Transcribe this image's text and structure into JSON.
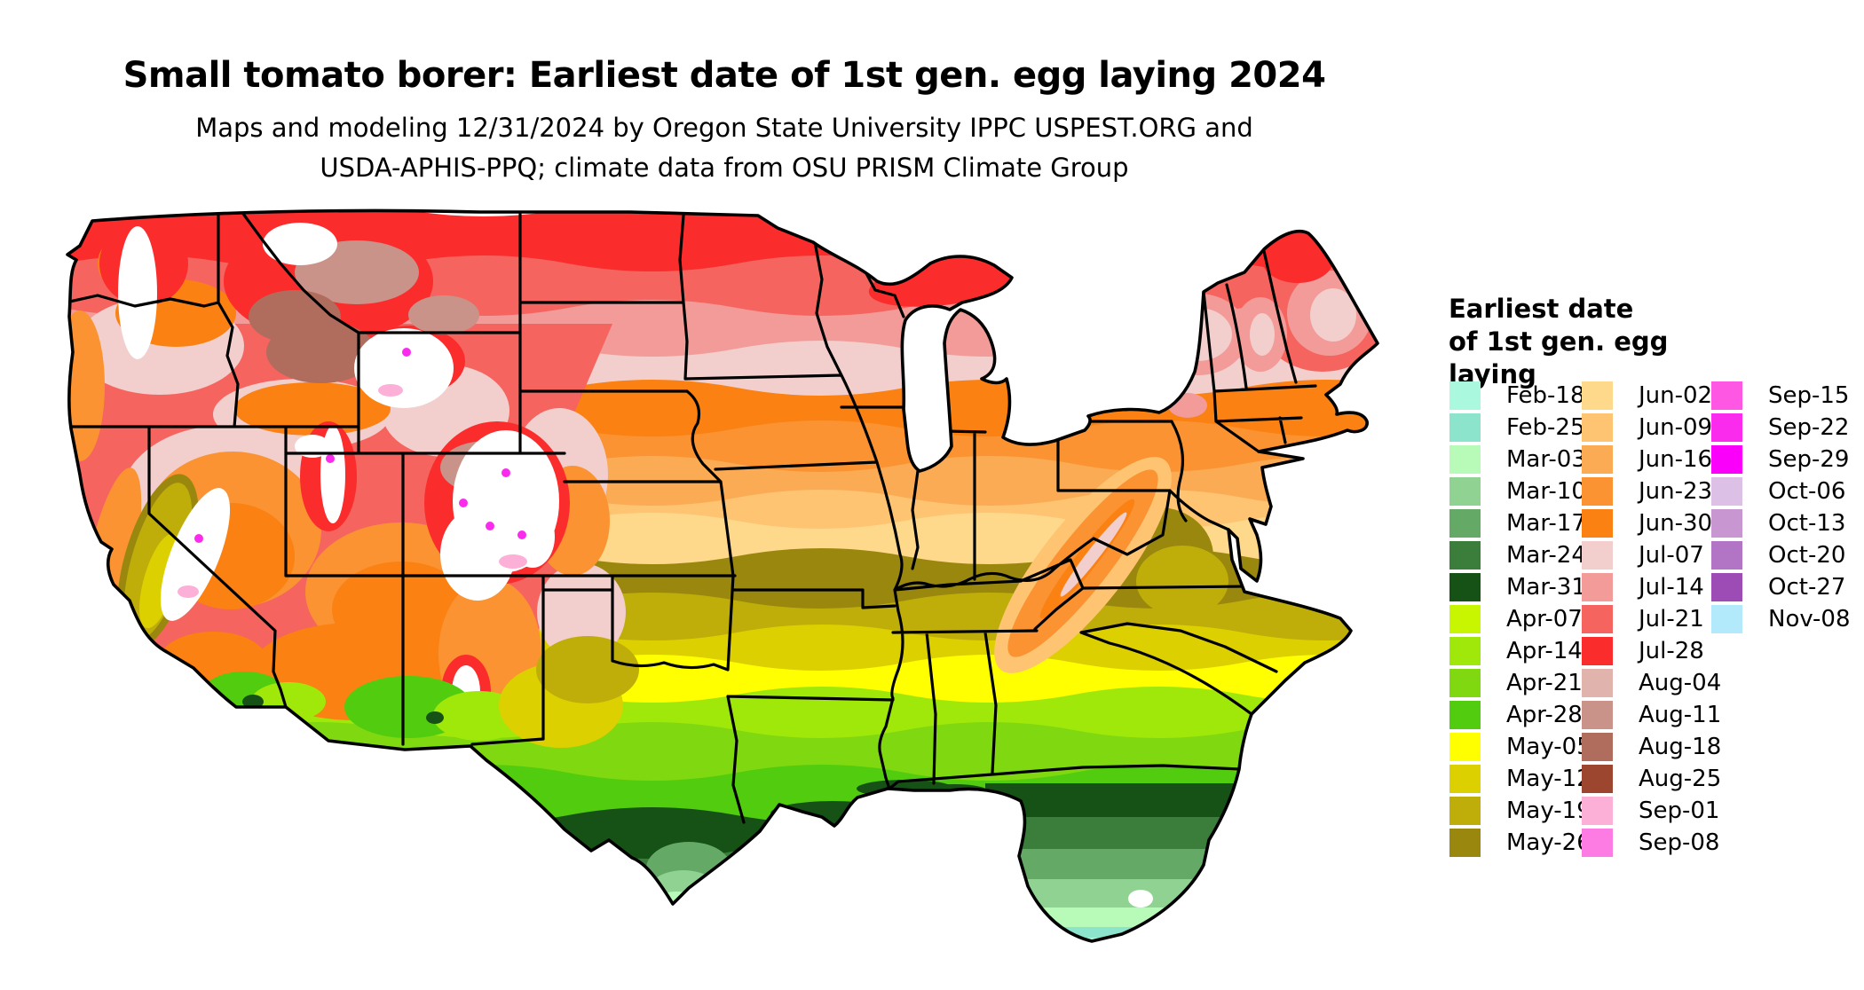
{
  "title": "Small tomato borer: Earliest date of 1st gen. egg laying 2024",
  "subtitle": {
    "line1": "Maps and modeling 12/31/2024 by Oregon State University IPPC USPEST.ORG and",
    "line2": "USDA-APHIS-PPQ; climate data from OSU PRISM Climate Group"
  },
  "legend": {
    "title_lines": [
      "Earliest date",
      "of 1st gen. egg",
      "laying"
    ],
    "columns": [
      [
        {
          "label": "Feb-18",
          "color": "#aaf8dd"
        },
        {
          "label": "Feb-25",
          "color": "#8ce4cd"
        },
        {
          "label": "Mar-03",
          "color": "#b8fab8"
        },
        {
          "label": "Mar-10",
          "color": "#90d291"
        },
        {
          "label": "Mar-17",
          "color": "#64aa66"
        },
        {
          "label": "Mar-24",
          "color": "#3b7e3b"
        },
        {
          "label": "Mar-31",
          "color": "#165115"
        },
        {
          "label": "Apr-07",
          "color": "#c8f500"
        },
        {
          "label": "Apr-14",
          "color": "#a0e80a"
        },
        {
          "label": "Apr-21",
          "color": "#80d810"
        },
        {
          "label": "Apr-28",
          "color": "#52cc0e"
        },
        {
          "label": "May-05",
          "color": "#ffff00"
        },
        {
          "label": "May-12",
          "color": "#dcd000"
        },
        {
          "label": "May-19",
          "color": "#bfae0a"
        },
        {
          "label": "May-26",
          "color": "#9a880e"
        }
      ],
      [
        {
          "label": "Jun-02",
          "color": "#fed98c"
        },
        {
          "label": "Jun-09",
          "color": "#fec472"
        },
        {
          "label": "Jun-16",
          "color": "#fcab55"
        },
        {
          "label": "Jun-23",
          "color": "#fb9332"
        },
        {
          "label": "Jun-30",
          "color": "#fa8112"
        },
        {
          "label": "Jul-07",
          "color": "#f2cecc"
        },
        {
          "label": "Jul-14",
          "color": "#f29b98"
        },
        {
          "label": "Jul-21",
          "color": "#f5645f"
        },
        {
          "label": "Jul-28",
          "color": "#fa2c2c"
        },
        {
          "label": "Aug-04",
          "color": "#e0b4ac"
        },
        {
          "label": "Aug-11",
          "color": "#c9938a"
        },
        {
          "label": "Aug-18",
          "color": "#b06c5c"
        },
        {
          "label": "Aug-25",
          "color": "#9c4630"
        },
        {
          "label": "Sep-01",
          "color": "#fcb0d8"
        },
        {
          "label": "Sep-08",
          "color": "#fc7ce4"
        }
      ],
      [
        {
          "label": "Sep-15",
          "color": "#fd57e4"
        },
        {
          "label": "Sep-22",
          "color": "#fb2bee"
        },
        {
          "label": "Sep-29",
          "color": "#fa00fa"
        },
        {
          "label": "Oct-06",
          "color": "#dcc0e6"
        },
        {
          "label": "Oct-13",
          "color": "#c897d2"
        },
        {
          "label": "Oct-20",
          "color": "#b274c4"
        },
        {
          "label": "Oct-27",
          "color": "#9c4cb4"
        },
        {
          "label": "Nov-08",
          "color": "#b2e9fb"
        }
      ]
    ]
  }
}
